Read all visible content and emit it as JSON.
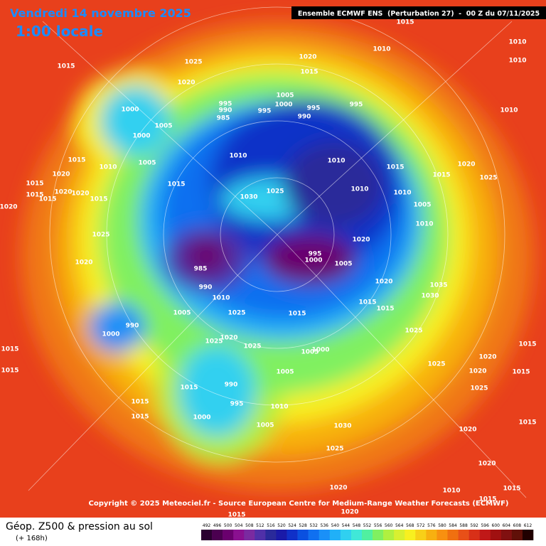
{
  "header": {
    "date": "Vendredi 14 novembre 2025",
    "time": "1:00 locale",
    "model": "Ensemble ECMWF ENS  (Perturbation 27)  -  00 Z du 07/11/2025"
  },
  "copyright": "Copyright © 2025 Meteociel.fr - Source European Centre for Medium-Range Weather Forecasts (ECMWF)",
  "footer": {
    "title": "Géop. Z500 & pression au sol",
    "lead": "(+ 168h)"
  },
  "pressure_labels": [
    1015,
    1025,
    1020,
    1020,
    1015,
    1010,
    1010,
    1010,
    1010,
    1015,
    1005,
    1000,
    995,
    990,
    995,
    995,
    995,
    990,
    985,
    1000,
    1005,
    1000,
    1005,
    1010,
    1015,
    1020,
    1015,
    1015,
    1020,
    1020,
    1015,
    1015,
    1020,
    1015,
    1010,
    1030,
    1025,
    1010,
    1015,
    1015,
    1020,
    1025,
    1010,
    1010,
    1005,
    1010,
    1025,
    1020,
    985,
    990,
    1010,
    1005,
    1025,
    1020,
    1025,
    1025,
    995,
    1000,
    1005,
    1020,
    1020,
    1015,
    1015,
    1015,
    1035,
    1030,
    990,
    1000,
    1015,
    1015,
    1015,
    1015,
    1015,
    990,
    995,
    1000,
    1005,
    1005,
    1000,
    1025,
    1025,
    1020,
    1020,
    1025,
    1015,
    1015,
    1010,
    1005,
    1030,
    1025,
    1020,
    1015,
    1020,
    1010,
    1015,
    1020,
    1020,
    1015,
    1015
  ],
  "colorbar": {
    "ticks": [
      492,
      496,
      500,
      504,
      508,
      512,
      516,
      520,
      524,
      528,
      532,
      536,
      540,
      544,
      548,
      552,
      556,
      560,
      564,
      568,
      572,
      576,
      580,
      584,
      588,
      592,
      596,
      600,
      604,
      608,
      612
    ],
    "colors": [
      "#2b0030",
      "#4b0050",
      "#6a006e",
      "#8a1090",
      "#7a2aa0",
      "#5030a8",
      "#2a2a9a",
      "#1a1aa8",
      "#1030c8",
      "#0a50e0",
      "#1070f0",
      "#1a90f8",
      "#20b0f8",
      "#30d0f0",
      "#40e8d8",
      "#50f0a0",
      "#80f060",
      "#b0f040",
      "#d8f030",
      "#f8f020",
      "#f8d018",
      "#f8b010",
      "#f89010",
      "#f07010",
      "#e85018",
      "#d83018",
      "#c01818",
      "#a01010",
      "#801010",
      "#601008",
      "#200000"
    ]
  }
}
